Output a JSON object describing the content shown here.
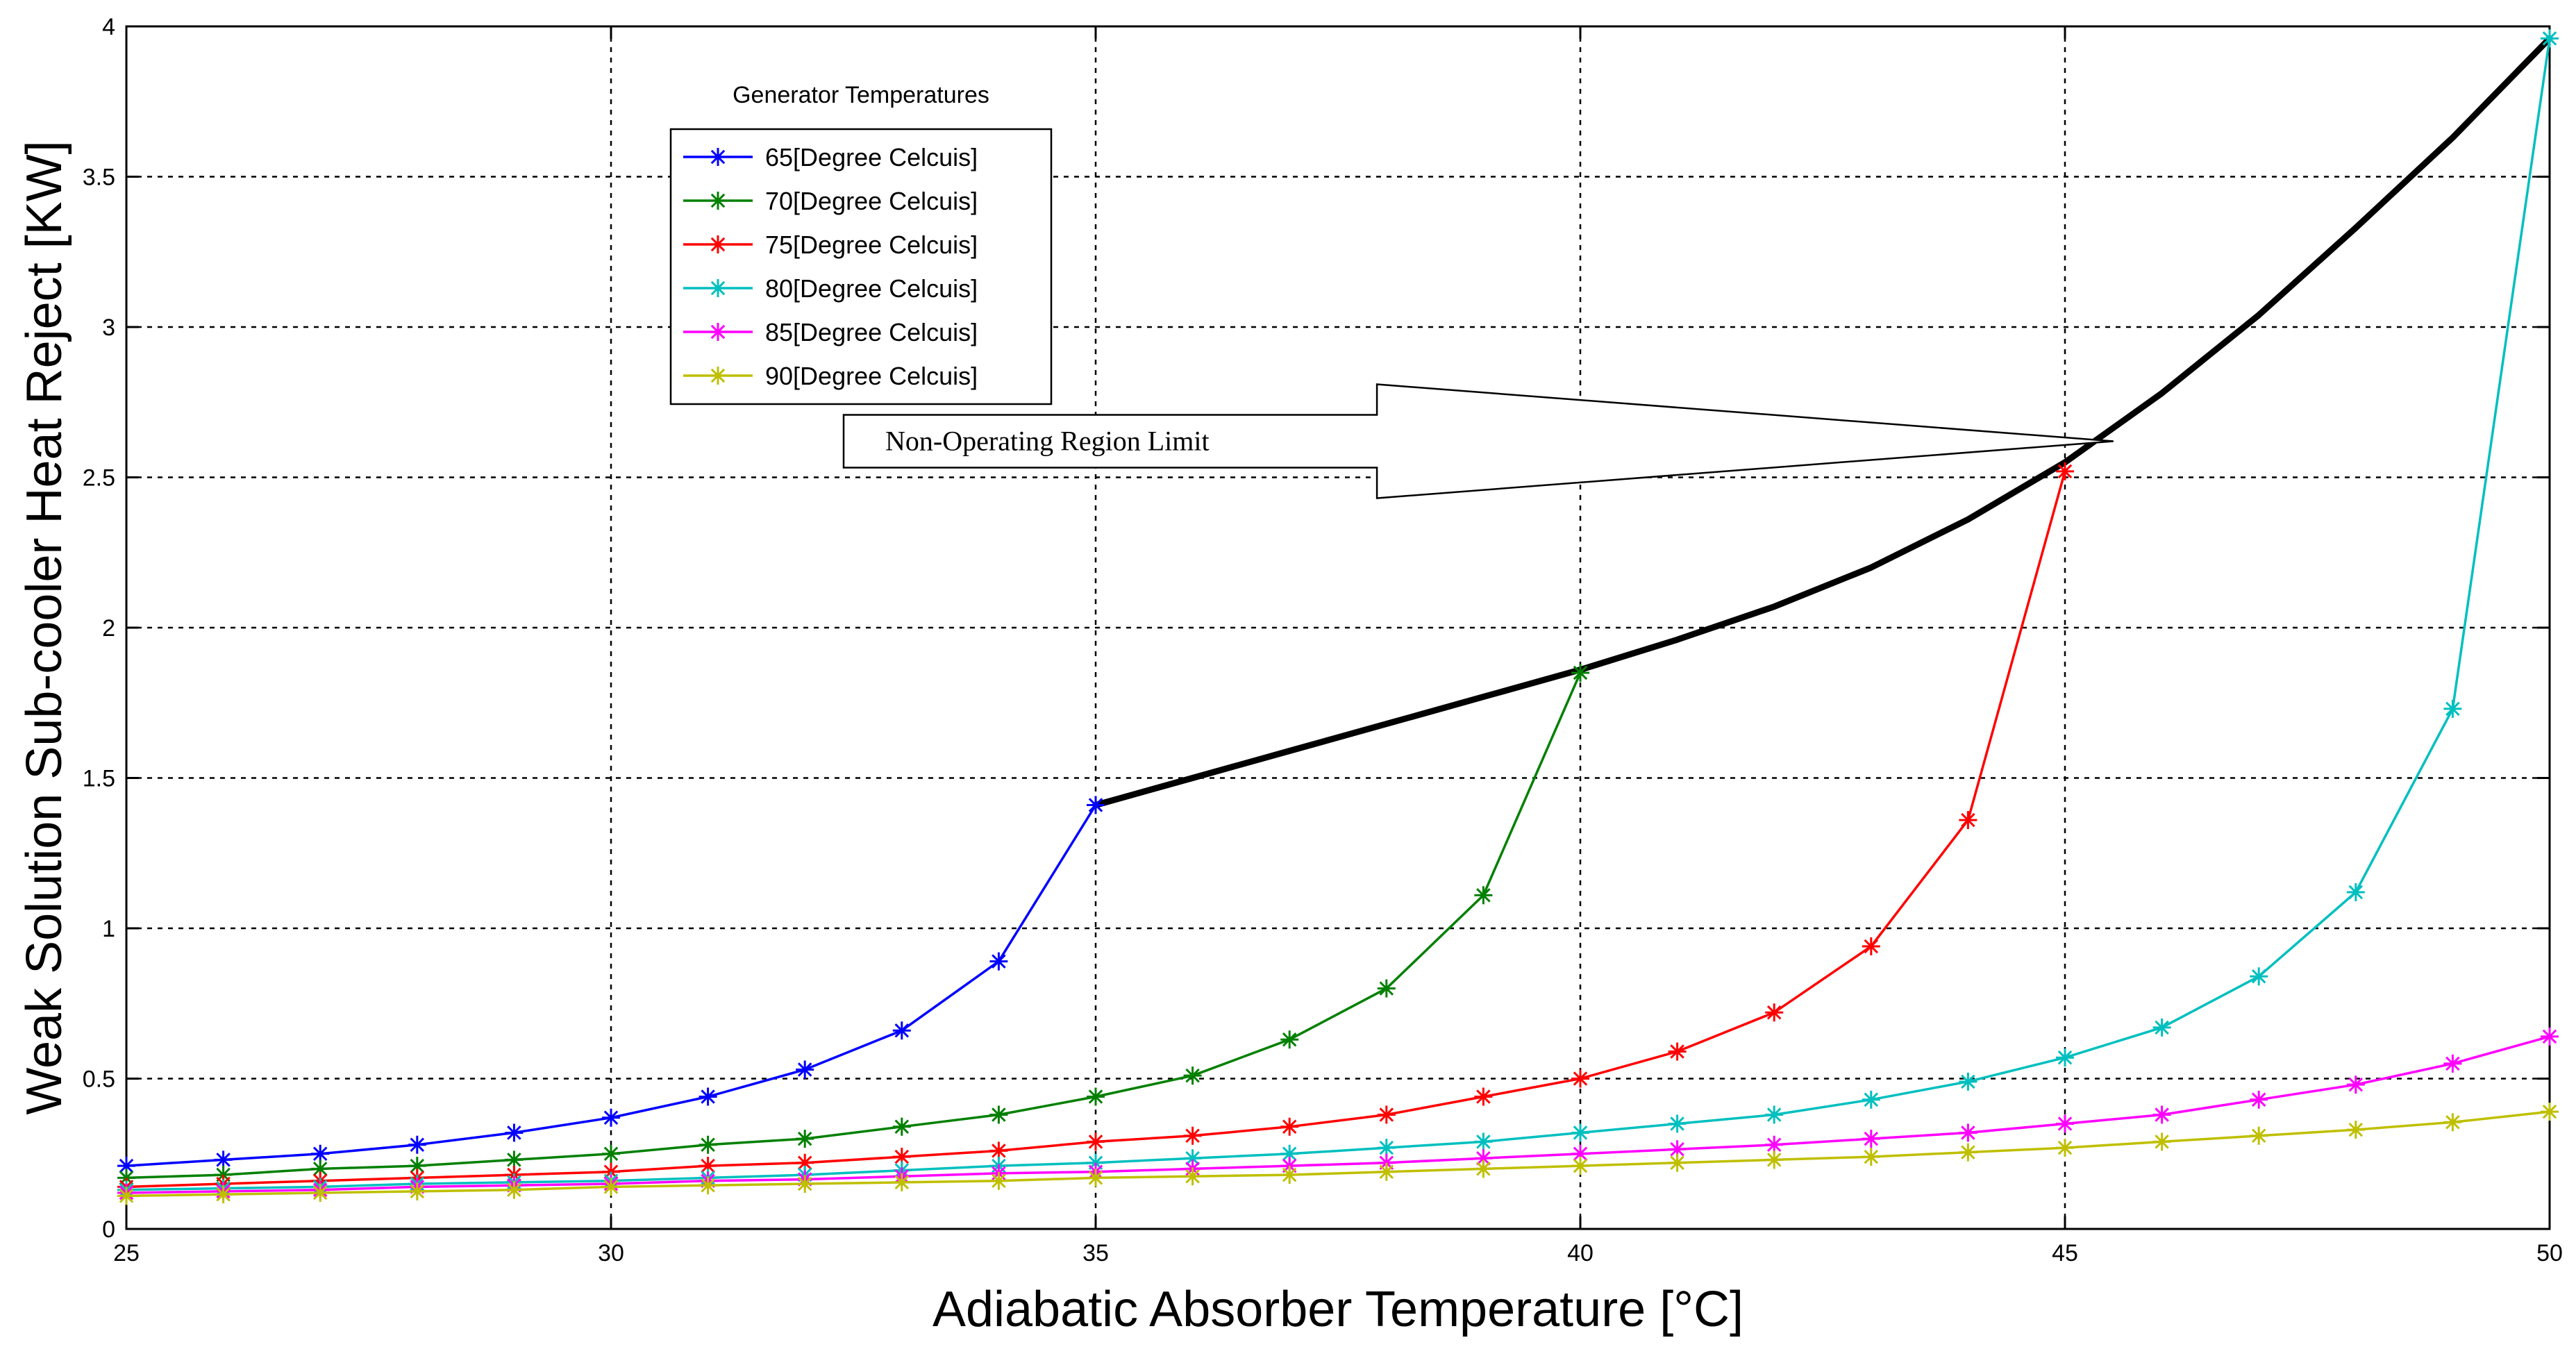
{
  "chart_data": {
    "type": "line",
    "title": "",
    "xlabel": "Adiabatic Absorber Temperature",
    "xlabel_unit": "[°C]",
    "ylabel": "Weak Solution Sub-cooler Heat Reject [KW]",
    "xlim": [
      25,
      50
    ],
    "ylim": [
      0,
      4
    ],
    "xticks": [
      "25",
      "30",
      "35",
      "40",
      "45",
      "50"
    ],
    "yticks": [
      "0",
      "0.5",
      "1",
      "1.5",
      "2",
      "2.5",
      "3",
      "3.5",
      "4"
    ],
    "grid": true,
    "legend": {
      "title": "Generator Temperatures",
      "position": "top-left"
    },
    "series": [
      {
        "name": "65[Degree Celcuis]",
        "color": "#0000ff",
        "x": [
          25,
          26,
          27,
          28,
          29,
          30,
          31,
          32,
          33,
          34,
          35
        ],
        "y": [
          0.21,
          0.23,
          0.25,
          0.28,
          0.32,
          0.37,
          0.44,
          0.53,
          0.66,
          0.89,
          1.41
        ]
      },
      {
        "name": "70[Degree Celcuis]",
        "color": "#008000",
        "x": [
          25,
          26,
          27,
          28,
          29,
          30,
          31,
          32,
          33,
          34,
          35,
          36,
          37,
          38,
          39,
          40
        ],
        "y": [
          0.17,
          0.18,
          0.2,
          0.21,
          0.23,
          0.25,
          0.28,
          0.3,
          0.34,
          0.38,
          0.44,
          0.51,
          0.63,
          0.8,
          1.11,
          1.85
        ]
      },
      {
        "name": "75[Degree Celcuis]",
        "color": "#ff0000",
        "x": [
          25,
          26,
          27,
          28,
          29,
          30,
          31,
          32,
          33,
          34,
          35,
          36,
          37,
          38,
          39,
          40,
          41,
          42,
          43,
          44,
          45
        ],
        "y": [
          0.14,
          0.15,
          0.16,
          0.17,
          0.18,
          0.19,
          0.21,
          0.22,
          0.24,
          0.26,
          0.29,
          0.31,
          0.34,
          0.38,
          0.44,
          0.5,
          0.59,
          0.72,
          0.94,
          1.36,
          2.52
        ]
      },
      {
        "name": "80[Degree Celcuis]",
        "color": "#00bfbf",
        "x": [
          25,
          26,
          27,
          28,
          29,
          30,
          31,
          32,
          33,
          34,
          35,
          36,
          37,
          38,
          39,
          40,
          41,
          42,
          43,
          44,
          45,
          46,
          47,
          48,
          49,
          50
        ],
        "y": [
          0.13,
          0.135,
          0.14,
          0.15,
          0.155,
          0.16,
          0.17,
          0.18,
          0.195,
          0.21,
          0.22,
          0.235,
          0.25,
          0.27,
          0.29,
          0.32,
          0.35,
          0.38,
          0.43,
          0.49,
          0.57,
          0.67,
          0.84,
          1.12,
          1.73,
          3.96
        ]
      },
      {
        "name": "85[Degree Celcuis]",
        "color": "#ff00ff",
        "x": [
          25,
          26,
          27,
          28,
          29,
          30,
          31,
          32,
          33,
          34,
          35,
          36,
          37,
          38,
          39,
          40,
          41,
          42,
          43,
          44,
          45,
          46,
          47,
          48,
          49,
          50
        ],
        "y": [
          0.12,
          0.125,
          0.13,
          0.14,
          0.145,
          0.15,
          0.16,
          0.165,
          0.175,
          0.185,
          0.19,
          0.2,
          0.21,
          0.22,
          0.235,
          0.25,
          0.265,
          0.28,
          0.3,
          0.32,
          0.35,
          0.38,
          0.43,
          0.48,
          0.55,
          0.64
        ]
      },
      {
        "name": "90[Degree Celcuis]",
        "color": "#bfbf00",
        "x": [
          25,
          26,
          27,
          28,
          29,
          30,
          31,
          32,
          33,
          34,
          35,
          36,
          37,
          38,
          39,
          40,
          41,
          42,
          43,
          44,
          45,
          46,
          47,
          48,
          49,
          50
        ],
        "y": [
          0.11,
          0.115,
          0.12,
          0.125,
          0.13,
          0.14,
          0.145,
          0.15,
          0.155,
          0.16,
          0.17,
          0.175,
          0.18,
          0.19,
          0.2,
          0.21,
          0.22,
          0.23,
          0.24,
          0.255,
          0.27,
          0.29,
          0.31,
          0.33,
          0.355,
          0.39
        ]
      }
    ],
    "limit_curve": {
      "name": "Non-Operating Region Limit",
      "color": "#000000",
      "x": [
        35,
        36,
        37,
        38,
        39,
        40,
        41,
        42,
        43,
        44,
        45,
        46,
        47,
        48,
        49,
        50
      ],
      "y": [
        1.41,
        1.5,
        1.59,
        1.68,
        1.77,
        1.86,
        1.96,
        2.07,
        2.2,
        2.36,
        2.55,
        2.78,
        3.04,
        3.33,
        3.63,
        3.96
      ]
    },
    "annotations": [
      {
        "text": "Non-Operating Region Limit",
        "type": "arrow",
        "from_x": 32.4,
        "to_x": 45.5,
        "y": 2.62
      }
    ]
  }
}
